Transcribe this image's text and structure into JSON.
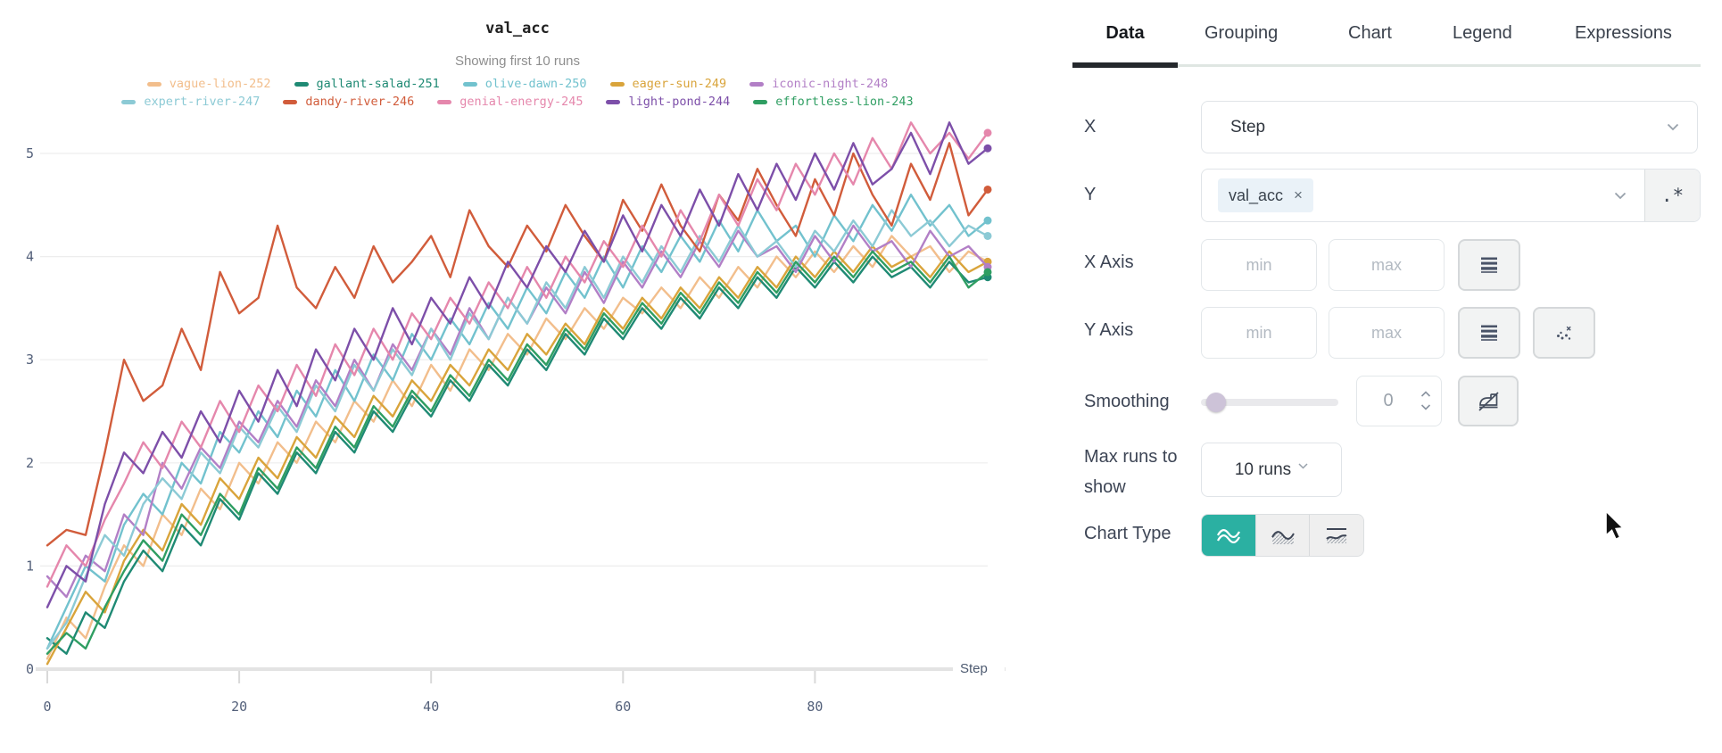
{
  "tabs": {
    "items": [
      {
        "label": "Data",
        "active": true
      },
      {
        "label": "Grouping",
        "active": false
      },
      {
        "label": "Chart",
        "active": false
      },
      {
        "label": "Legend",
        "active": false
      },
      {
        "label": "Expressions",
        "active": false
      }
    ]
  },
  "controls": {
    "x": {
      "label": "X",
      "value": "Step"
    },
    "y": {
      "label": "Y",
      "selected_tag": "val_acc",
      "remove_glyph": "×",
      "regex_label": ".*"
    },
    "x_axis": {
      "label": "X Axis",
      "min_placeholder": "min",
      "max_placeholder": "max"
    },
    "y_axis": {
      "label": "Y Axis",
      "min_placeholder": "min",
      "max_placeholder": "max"
    },
    "smoothing": {
      "label": "Smoothing",
      "value": "0"
    },
    "max_runs": {
      "label": "Max runs to show",
      "value": "10 runs"
    },
    "chart_type": {
      "label": "Chart Type"
    }
  },
  "colors": {
    "accent_teal": "#2bb0a2",
    "tab_underline": "#24282c",
    "grid": "#ededed",
    "axis": "#e3e3e3",
    "tick_label": "#53607a",
    "panel_label": "#3d4555"
  },
  "chart_data": {
    "type": "line",
    "title": "val_acc",
    "subtitle": "Showing first 10 runs",
    "xlabel": "Step",
    "ylabel": "",
    "x_ticks": [
      0,
      20,
      40,
      60,
      80
    ],
    "y_ticks": [
      0,
      1,
      2,
      3,
      4,
      5
    ],
    "xlim": [
      0,
      98
    ],
    "ylim": [
      0,
      5.45
    ],
    "grid": true,
    "legend_position": "top",
    "x": [
      0,
      2,
      4,
      6,
      8,
      10,
      12,
      14,
      16,
      18,
      20,
      22,
      24,
      26,
      28,
      30,
      32,
      34,
      36,
      38,
      40,
      42,
      44,
      46,
      48,
      50,
      52,
      54,
      56,
      58,
      60,
      62,
      64,
      66,
      68,
      70,
      72,
      74,
      76,
      78,
      80,
      82,
      84,
      86,
      88,
      90,
      92,
      94,
      96,
      98
    ],
    "series": [
      {
        "name": "vague-lion-252",
        "color": "#f2be8c",
        "values": [
          0.1,
          0.5,
          0.3,
          0.8,
          1.2,
          1.0,
          1.5,
          1.3,
          1.75,
          1.55,
          2.0,
          1.8,
          2.2,
          2.0,
          2.4,
          2.2,
          2.6,
          2.4,
          2.8,
          2.55,
          2.95,
          2.7,
          3.1,
          2.9,
          3.25,
          3.05,
          3.4,
          3.2,
          3.5,
          3.3,
          3.6,
          3.45,
          3.7,
          3.5,
          3.8,
          3.6,
          3.9,
          3.7,
          4.0,
          3.8,
          4.05,
          3.85,
          4.1,
          3.9,
          4.2,
          4.0,
          4.1,
          3.85,
          4.05,
          3.95
        ]
      },
      {
        "name": "gallant-salad-251",
        "color": "#1f8a74",
        "values": [
          0.3,
          0.15,
          0.55,
          0.4,
          0.85,
          1.15,
          0.95,
          1.4,
          1.2,
          1.65,
          1.45,
          1.9,
          1.7,
          2.1,
          1.9,
          2.3,
          2.1,
          2.5,
          2.3,
          2.65,
          2.45,
          2.8,
          2.6,
          2.95,
          2.75,
          3.1,
          2.9,
          3.25,
          3.05,
          3.4,
          3.2,
          3.5,
          3.3,
          3.6,
          3.4,
          3.7,
          3.5,
          3.8,
          3.6,
          3.9,
          3.7,
          3.95,
          3.75,
          4.0,
          3.8,
          3.9,
          3.7,
          3.95,
          3.75,
          3.8
        ]
      },
      {
        "name": "olive-dawn-250",
        "color": "#72c2ce",
        "values": [
          0.2,
          0.6,
          1.0,
          0.85,
          1.4,
          1.7,
          1.5,
          2.0,
          1.8,
          2.3,
          2.1,
          2.5,
          2.25,
          2.7,
          2.45,
          2.9,
          2.6,
          3.05,
          2.8,
          3.25,
          3.0,
          3.4,
          3.15,
          3.55,
          3.3,
          3.7,
          3.45,
          3.85,
          3.6,
          4.0,
          3.7,
          4.1,
          3.85,
          4.2,
          3.95,
          4.35,
          4.05,
          4.45,
          4.15,
          4.3,
          4.0,
          4.4,
          4.15,
          4.5,
          4.25,
          4.6,
          4.3,
          4.5,
          4.2,
          4.35
        ]
      },
      {
        "name": "eager-sun-249",
        "color": "#d9a43b",
        "values": [
          0.05,
          0.4,
          0.75,
          0.55,
          1.05,
          1.35,
          1.15,
          1.6,
          1.4,
          1.85,
          1.65,
          2.05,
          1.85,
          2.25,
          2.05,
          2.45,
          2.25,
          2.65,
          2.45,
          2.8,
          2.6,
          2.95,
          2.75,
          3.1,
          2.9,
          3.25,
          3.05,
          3.35,
          3.15,
          3.5,
          3.3,
          3.6,
          3.4,
          3.7,
          3.5,
          3.8,
          3.6,
          3.9,
          3.7,
          4.0,
          3.8,
          4.05,
          3.85,
          4.1,
          3.9,
          4.0,
          3.8,
          4.05,
          3.85,
          3.95
        ]
      },
      {
        "name": "iconic-night-248",
        "color": "#b27fc6",
        "values": [
          0.9,
          0.7,
          1.1,
          0.95,
          1.5,
          1.3,
          2.0,
          1.75,
          2.15,
          1.95,
          2.4,
          2.2,
          2.6,
          2.35,
          2.8,
          2.55,
          3.0,
          2.7,
          3.15,
          2.9,
          3.3,
          3.05,
          3.5,
          3.2,
          3.6,
          3.35,
          3.7,
          3.45,
          3.85,
          3.55,
          3.95,
          3.7,
          4.05,
          3.8,
          4.15,
          3.9,
          4.25,
          4.0,
          4.1,
          3.85,
          4.2,
          3.95,
          4.3,
          4.05,
          4.15,
          3.9,
          4.25,
          4.0,
          4.1,
          3.9
        ]
      },
      {
        "name": "expert-river-247",
        "color": "#8ccad5",
        "values": [
          0.2,
          0.45,
          0.9,
          1.3,
          1.1,
          1.6,
          1.85,
          1.65,
          2.1,
          1.9,
          2.35,
          2.15,
          2.55,
          2.3,
          2.75,
          2.5,
          2.95,
          2.7,
          3.1,
          2.85,
          3.3,
          3.0,
          3.45,
          3.2,
          3.6,
          3.35,
          3.75,
          3.5,
          3.9,
          3.6,
          4.0,
          3.75,
          4.1,
          3.85,
          4.2,
          3.95,
          4.3,
          4.0,
          4.15,
          3.9,
          4.25,
          4.05,
          4.35,
          4.1,
          4.45,
          4.2,
          4.35,
          4.1,
          4.3,
          4.2
        ]
      },
      {
        "name": "dandy-river-246",
        "color": "#d15c3b",
        "values": [
          1.2,
          1.35,
          1.3,
          2.1,
          3.0,
          2.6,
          2.75,
          3.3,
          2.9,
          3.85,
          3.45,
          3.6,
          4.3,
          3.7,
          3.5,
          3.9,
          3.6,
          4.1,
          3.75,
          3.95,
          4.2,
          3.8,
          4.45,
          4.1,
          3.9,
          4.3,
          4.05,
          4.5,
          4.2,
          3.95,
          4.55,
          4.25,
          4.7,
          4.3,
          4.05,
          4.6,
          4.35,
          4.85,
          4.5,
          4.2,
          4.75,
          4.4,
          5.0,
          4.6,
          4.3,
          4.9,
          4.55,
          5.1,
          4.4,
          4.65
        ]
      },
      {
        "name": "genial-energy-245",
        "color": "#e587ac",
        "values": [
          0.8,
          1.2,
          1.0,
          1.45,
          1.8,
          2.2,
          1.95,
          2.4,
          2.15,
          2.6,
          2.3,
          2.75,
          2.5,
          2.95,
          2.65,
          3.15,
          2.85,
          3.3,
          3.0,
          3.45,
          3.2,
          3.6,
          3.35,
          3.75,
          3.5,
          3.9,
          3.6,
          4.0,
          3.75,
          4.15,
          3.9,
          4.3,
          4.0,
          4.45,
          4.15,
          4.6,
          4.3,
          4.75,
          4.45,
          4.9,
          4.6,
          5.0,
          4.7,
          5.15,
          4.85,
          5.3,
          5.0,
          5.2,
          4.95,
          5.2
        ]
      },
      {
        "name": "light-pond-244",
        "color": "#7d4fa9",
        "values": [
          0.6,
          1.0,
          0.85,
          1.6,
          2.1,
          1.9,
          2.3,
          2.05,
          2.5,
          2.2,
          2.7,
          2.4,
          2.9,
          2.55,
          3.1,
          2.8,
          3.3,
          3.0,
          3.5,
          3.15,
          3.6,
          3.35,
          3.8,
          3.5,
          3.95,
          3.7,
          4.1,
          3.85,
          4.25,
          3.95,
          4.4,
          4.05,
          4.5,
          4.2,
          4.65,
          4.3,
          4.8,
          4.45,
          4.9,
          4.55,
          5.0,
          4.65,
          5.1,
          4.7,
          4.85,
          5.2,
          4.8,
          5.3,
          4.9,
          5.05
        ]
      },
      {
        "name": "effortless-lion-243",
        "color": "#2f9e62",
        "values": [
          0.15,
          0.35,
          0.2,
          0.6,
          0.95,
          1.25,
          1.05,
          1.5,
          1.3,
          1.7,
          1.5,
          1.95,
          1.75,
          2.15,
          1.95,
          2.35,
          2.15,
          2.55,
          2.35,
          2.7,
          2.5,
          2.85,
          2.65,
          3.0,
          2.8,
          3.15,
          2.95,
          3.3,
          3.1,
          3.45,
          3.25,
          3.55,
          3.35,
          3.65,
          3.45,
          3.75,
          3.55,
          3.85,
          3.65,
          3.95,
          3.75,
          4.0,
          3.8,
          4.05,
          3.85,
          3.95,
          3.75,
          4.0,
          3.7,
          3.85
        ]
      }
    ]
  }
}
